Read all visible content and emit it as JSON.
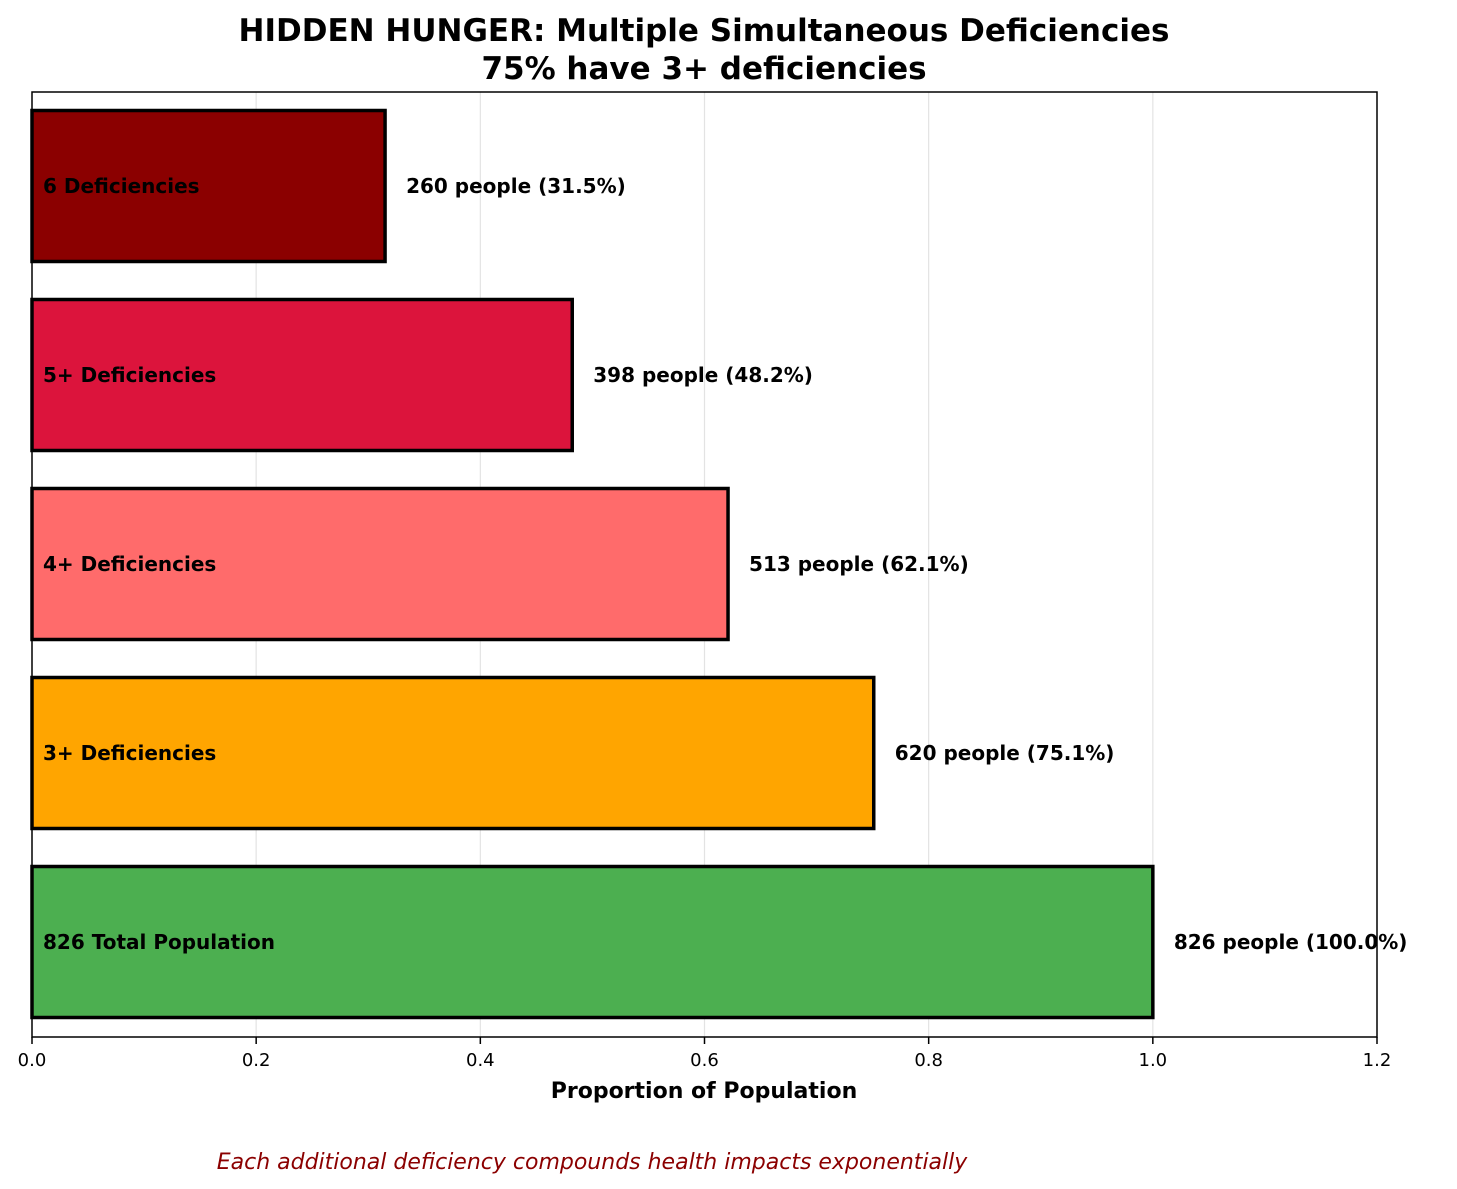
{
  "chart_data": {
    "type": "bar",
    "orientation": "horizontal",
    "title": "HIDDEN HUNGER: Multiple Simultaneous Deficiencies",
    "subtitle": "75% have 3+ deficiencies",
    "xlabel": "Proportion of Population",
    "xlim": [
      0,
      1.2
    ],
    "xticks": [
      "0.0",
      "0.2",
      "0.4",
      "0.6",
      "0.8",
      "1.0",
      "1.2"
    ],
    "xtick_values": [
      0,
      0.2,
      0.4,
      0.6,
      0.8,
      1.0,
      1.2
    ],
    "grid": "vertical",
    "bars": [
      {
        "label": "6 Deficiencies",
        "value": 0.315,
        "annotation": "260 people (31.5%)",
        "color": "#8b0000"
      },
      {
        "label": "5+ Deficiencies",
        "value": 0.482,
        "annotation": "398 people (48.2%)",
        "color": "#dc143c"
      },
      {
        "label": "4+ Deficiencies",
        "value": 0.621,
        "annotation": "513 people (62.1%)",
        "color": "#ff6b6b"
      },
      {
        "label": "3+ Deficiencies",
        "value": 0.751,
        "annotation": "620 people (75.1%)",
        "color": "#ffa500"
      },
      {
        "label": "826 Total Population",
        "value": 1.0,
        "annotation": "826 people (100.0%)",
        "color": "#4caf50"
      }
    ],
    "footnote": "Each additional deficiency compounds health impacts exponentially",
    "footnote_color": "#8b0000"
  }
}
